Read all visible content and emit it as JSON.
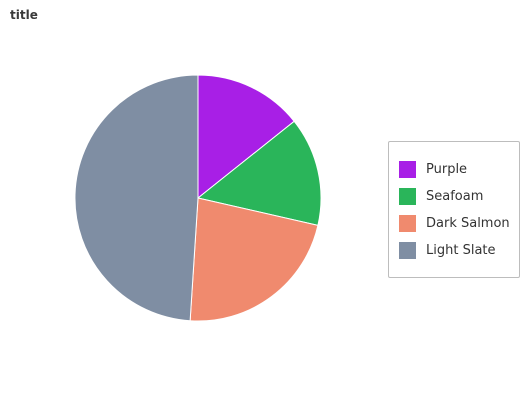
{
  "chart_data": {
    "type": "pie",
    "title": "title",
    "categories": [
      "Purple",
      "Seafoam",
      "Dark Salmon",
      "Light Slate"
    ],
    "values": [
      14,
      14,
      22,
      48
    ],
    "colors": [
      "#a81fe6",
      "#2ab55a",
      "#f08a6e",
      "#7f8ea3"
    ],
    "legend_position": "right",
    "start_angle_deg": 0,
    "direction": "clockwise"
  }
}
